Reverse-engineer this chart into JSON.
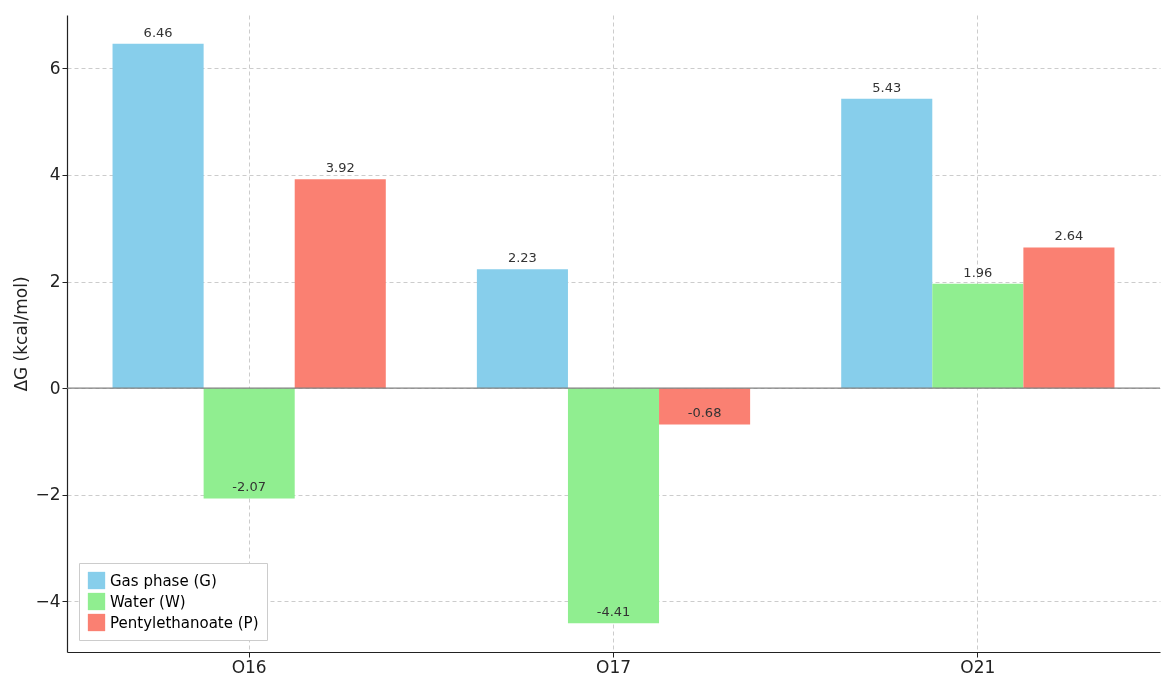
{
  "chart_data": {
    "type": "bar",
    "ylabel": "ΔG (kcal/mol)",
    "categories": [
      "O16",
      "O17",
      "O21"
    ],
    "series": [
      {
        "name": "Gas phase (G)",
        "color": "#87ceeb",
        "values": [
          6.46,
          2.23,
          5.43
        ]
      },
      {
        "name": "Water (W)",
        "color": "#90ee90",
        "values": [
          -2.07,
          -4.41,
          1.96
        ]
      },
      {
        "name": "Pentylethanoate (P)",
        "color": "#fa8072",
        "values": [
          3.92,
          -0.68,
          2.64
        ]
      }
    ],
    "ylim": [
      -4.95,
      7.0
    ],
    "yticks": [
      {
        "value": -4,
        "label": "−4"
      },
      {
        "value": -2,
        "label": "−2"
      },
      0,
      2,
      4,
      6
    ],
    "ref_lines": [
      {
        "axis": "y",
        "value": 0,
        "color": "#808080"
      }
    ],
    "data_labels": true,
    "grid": true,
    "legend": "bottom left"
  }
}
